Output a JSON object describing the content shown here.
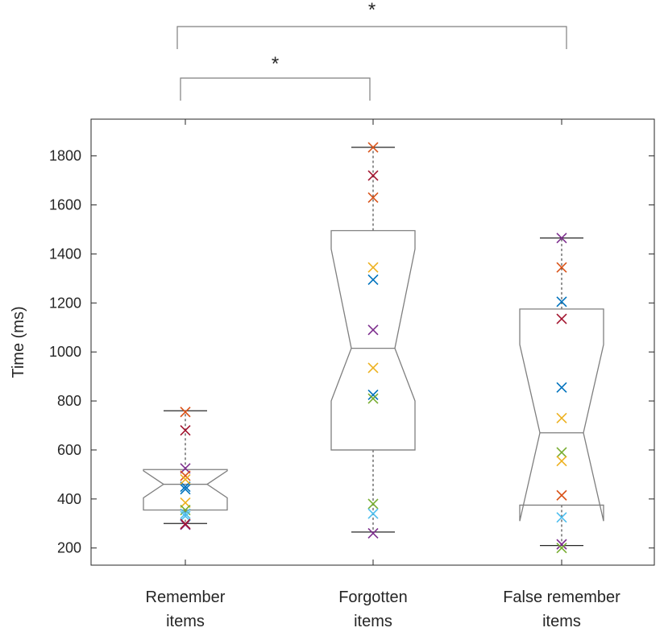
{
  "chart_data": {
    "type": "boxplot",
    "notched": true,
    "ylabel": "Time (ms)",
    "xlabel": "",
    "ylim": [
      130,
      1950
    ],
    "yticks": [
      200,
      400,
      600,
      800,
      1000,
      1200,
      1400,
      1600,
      1800
    ],
    "grid": false,
    "legend": "none",
    "box_color": "#7f7f7f",
    "whisker_color": "#262626",
    "categories": [
      [
        "Remember",
        "items"
      ],
      [
        "Forgotten",
        "items"
      ],
      [
        "False remember",
        "items"
      ]
    ],
    "boxes": [
      {
        "q1": 355,
        "median": 460,
        "q3": 520,
        "notch_low": 405,
        "notch_high": 515,
        "whisker_low": 300,
        "whisker_high": 760
      },
      {
        "q1": 600,
        "median": 1015,
        "q3": 1495,
        "notch_low": 800,
        "notch_high": 1420,
        "whisker_low": 265,
        "whisker_high": 1835
      },
      {
        "q1": 375,
        "median": 670,
        "q3": 1175,
        "notch_low": 310,
        "notch_high": 1030,
        "whisker_low": 210,
        "whisker_high": 1465
      }
    ],
    "point_colors": [
      "#0072bd",
      "#d95319",
      "#edb120",
      "#7e2f8e",
      "#77ac30",
      "#4dbeee",
      "#a2142f"
    ],
    "points": [
      [
        {
          "y": 450,
          "color": "#0072bd"
        },
        {
          "y": 755,
          "color": "#d95319"
        },
        {
          "y": 385,
          "color": "#edb120"
        },
        {
          "y": 525,
          "color": "#7e2f8e"
        },
        {
          "y": 355,
          "color": "#77ac30"
        },
        {
          "y": 340,
          "color": "#4dbeee"
        },
        {
          "y": 680,
          "color": "#a2142f"
        },
        {
          "y": 440,
          "color": "#0072bd"
        },
        {
          "y": 495,
          "color": "#d95319"
        },
        {
          "y": 480,
          "color": "#edb120"
        },
        {
          "y": 295,
          "color": "#7e2f8e"
        },
        {
          "y": 330,
          "color": "#4dbeee"
        },
        {
          "y": 298,
          "color": "#a2142f"
        }
      ],
      [
        {
          "y": 1295,
          "color": "#0072bd"
        },
        {
          "y": 1835,
          "color": "#d95319"
        },
        {
          "y": 1345,
          "color": "#edb120"
        },
        {
          "y": 1090,
          "color": "#7e2f8e"
        },
        {
          "y": 380,
          "color": "#77ac30"
        },
        {
          "y": 340,
          "color": "#4dbeee"
        },
        {
          "y": 1720,
          "color": "#a2142f"
        },
        {
          "y": 825,
          "color": "#0072bd"
        },
        {
          "y": 1630,
          "color": "#d95319"
        },
        {
          "y": 935,
          "color": "#edb120"
        },
        {
          "y": 260,
          "color": "#7e2f8e"
        },
        {
          "y": 810,
          "color": "#77ac30"
        }
      ],
      [
        {
          "y": 1205,
          "color": "#0072bd"
        },
        {
          "y": 1345,
          "color": "#d95319"
        },
        {
          "y": 730,
          "color": "#edb120"
        },
        {
          "y": 1465,
          "color": "#7e2f8e"
        },
        {
          "y": 590,
          "color": "#77ac30"
        },
        {
          "y": 325,
          "color": "#4dbeee"
        },
        {
          "y": 1135,
          "color": "#a2142f"
        },
        {
          "y": 855,
          "color": "#0072bd"
        },
        {
          "y": 415,
          "color": "#d95319"
        },
        {
          "y": 555,
          "color": "#edb120"
        },
        {
          "y": 215,
          "color": "#7e2f8e"
        },
        {
          "y": 200,
          "color": "#77ac30"
        }
      ]
    ],
    "significance": [
      {
        "from": 0,
        "to": 2,
        "label": "*"
      },
      {
        "from": 0,
        "to": 1,
        "label": "*"
      }
    ]
  }
}
